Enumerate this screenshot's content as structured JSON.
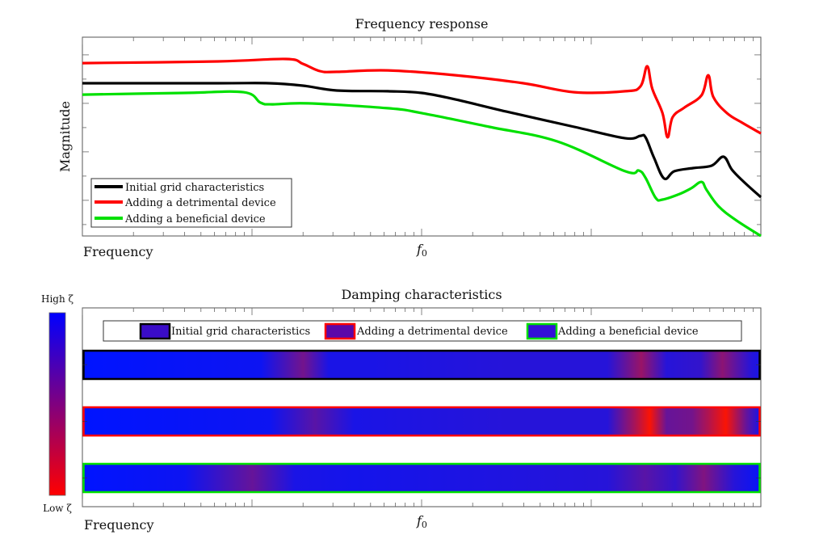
{
  "chart_data": [
    {
      "type": "line",
      "title": "Frequency response",
      "xlabel": "Frequency",
      "ylabel": "Magnitude",
      "x_scale": "log (decades relative to f0)",
      "xlim": [
        -2,
        2
      ],
      "ylim": [
        0,
        8.2
      ],
      "x_marker": {
        "value": 0,
        "label": "f",
        "label_sub": "0"
      },
      "grid": false,
      "legend": {
        "placement": "bottom-left"
      },
      "series": [
        {
          "name": "Initial grid characteristics",
          "color": "#000000",
          "x": [
            -2,
            -1.2,
            -0.9,
            -0.7,
            -0.5,
            -0.2,
            0,
            0.2,
            0.5,
            0.9,
            1.2,
            1.29,
            1.32,
            1.37,
            1.43,
            1.49,
            1.6,
            1.71,
            1.78,
            1.83,
            1.9,
            2
          ],
          "y": [
            6.3,
            6.3,
            6.3,
            6.2,
            6.0,
            5.97,
            5.9,
            5.63,
            5.13,
            4.5,
            4.03,
            4.13,
            4.07,
            3.23,
            2.37,
            2.67,
            2.8,
            2.9,
            3.27,
            2.73,
            2.23,
            1.6
          ]
        },
        {
          "name": "Adding a detrimental device",
          "color": "#ff0000",
          "x": [
            -2,
            -1.2,
            -0.8,
            -0.7,
            -0.6,
            -0.5,
            -0.2,
            0.2,
            0.6,
            0.9,
            1.2,
            1.29,
            1.33,
            1.36,
            1.42,
            1.45,
            1.48,
            1.55,
            1.65,
            1.69,
            1.72,
            1.8,
            1.89,
            2
          ],
          "y": [
            7.13,
            7.2,
            7.3,
            7.1,
            6.8,
            6.77,
            6.83,
            6.63,
            6.3,
            5.93,
            5.97,
            6.17,
            7.0,
            6.07,
            5.07,
            4.07,
            4.9,
            5.3,
            5.8,
            6.63,
            5.73,
            5.07,
            4.67,
            4.23
          ]
        },
        {
          "name": "Adding a beneficial device",
          "color": "#00e000",
          "x": [
            -2,
            -1.4,
            -1.05,
            -0.95,
            -0.88,
            -0.67,
            -0.2,
            0,
            0.4,
            0.8,
            1.2,
            1.28,
            1.32,
            1.38,
            1.42,
            1.52,
            1.59,
            1.65,
            1.68,
            1.75,
            1.85,
            2
          ],
          "y": [
            5.83,
            5.9,
            5.93,
            5.5,
            5.43,
            5.47,
            5.27,
            5.07,
            4.5,
            3.9,
            2.67,
            2.7,
            2.4,
            1.57,
            1.5,
            1.73,
            1.97,
            2.23,
            1.9,
            1.23,
            0.67,
            0
          ]
        }
      ]
    },
    {
      "type": "heatmap",
      "title": "Damping characteristics",
      "xlabel": "Frequency",
      "x_scale": "log (decades relative to f0)",
      "xlim": [
        -2,
        2
      ],
      "x_marker": {
        "value": 0,
        "label": "f",
        "label_sub": "0"
      },
      "colorbar": {
        "high_label": "High ζ",
        "low_label": "Low ζ",
        "high_color": "#0000ff",
        "low_color": "#ff0000"
      },
      "legend": {
        "placement": "top"
      },
      "series": [
        {
          "name": "Initial grid characteristics",
          "edge_color": "#000000",
          "swatch_color": "#3a0cc8",
          "x": [
            -2,
            -0.95,
            -0.7,
            -0.55,
            -0.3,
            0.5,
            1.1,
            1.3,
            1.45,
            1.65,
            1.78,
            1.95,
            2
          ],
          "damping": [
            1.0,
            0.95,
            0.55,
            0.9,
            0.9,
            0.85,
            0.85,
            0.4,
            0.85,
            0.8,
            0.45,
            0.85,
            0.9
          ]
        },
        {
          "name": "Adding a detrimental device",
          "edge_color": "#ff0000",
          "swatch_color": "#5a08a8",
          "x": [
            -2,
            -0.9,
            -0.63,
            -0.4,
            0.5,
            1.1,
            1.26,
            1.35,
            1.45,
            1.6,
            1.7,
            1.8,
            1.92,
            2
          ],
          "damping": [
            1.0,
            0.95,
            0.65,
            0.9,
            0.85,
            0.85,
            0.35,
            0.02,
            0.6,
            0.55,
            0.3,
            0.02,
            0.6,
            0.9
          ]
        },
        {
          "name": "Adding a beneficial device",
          "edge_color": "#00e000",
          "swatch_color": "#3410d8",
          "x": [
            -2,
            -1.4,
            -1.0,
            -0.75,
            -0.4,
            0.5,
            1.1,
            1.32,
            1.5,
            1.67,
            1.85,
            2
          ],
          "damping": [
            1.0,
            0.95,
            0.6,
            0.9,
            0.92,
            0.88,
            0.85,
            0.65,
            0.8,
            0.5,
            0.85,
            0.97
          ]
        }
      ]
    }
  ]
}
